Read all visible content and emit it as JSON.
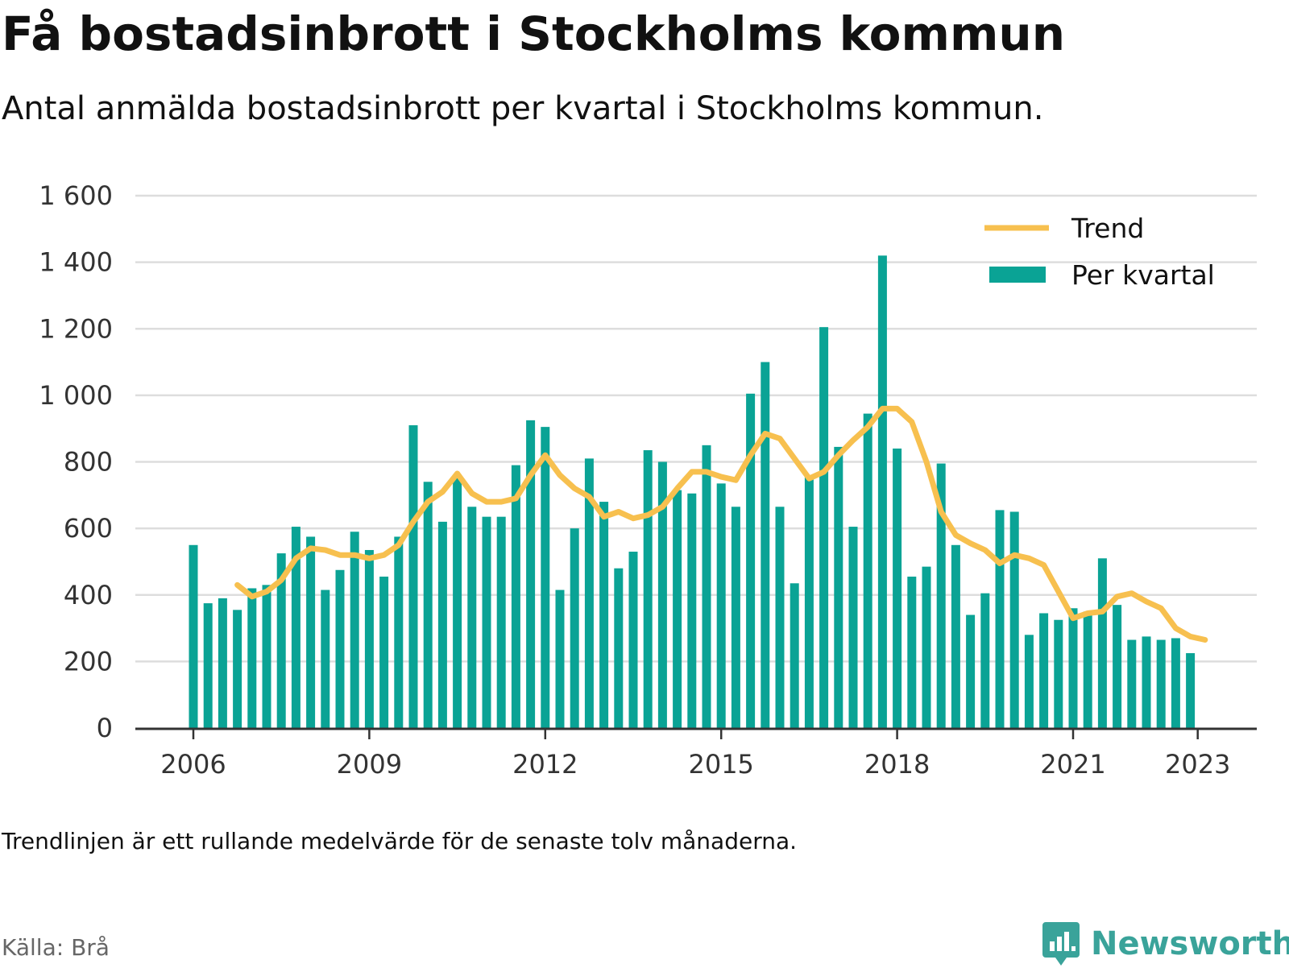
{
  "header": {
    "title": "Få bostadsinbrott i Stockholms kommun",
    "subtitle": "Antal anmälda bostadsinbrott per kvartal i Stockholms kommun."
  },
  "footer": {
    "note": "Trendlinjen är ett rullande medelvärde för de senaste tolv månaderna.",
    "source": "Källa: Brå",
    "brand": "Newsworthy"
  },
  "colors": {
    "bars": "#0aa395",
    "trend": "#f7c04f",
    "grid": "#dddddd",
    "axis": "#333333",
    "brand": "#3aa39a"
  },
  "chart_data": {
    "type": "bar",
    "x_start": "2006 Q1",
    "ylim": [
      0,
      1600
    ],
    "yticks": [
      0,
      200,
      400,
      600,
      800,
      1000,
      1200,
      1400,
      1600
    ],
    "ytick_labels": [
      "0",
      "200",
      "400",
      "600",
      "800",
      "1 000",
      "1 200",
      "1 400",
      "1 600"
    ],
    "xtick_labels": [
      "2006",
      "2009",
      "2012",
      "2015",
      "2018",
      "2021",
      "2023"
    ],
    "grid": true,
    "legend_position": "top-right",
    "series": [
      {
        "name": "Per kvartal",
        "type": "bar",
        "values": [
          550,
          375,
          390,
          355,
          420,
          430,
          525,
          605,
          575,
          415,
          475,
          590,
          535,
          455,
          575,
          910,
          740,
          620,
          755,
          665,
          635,
          635,
          790,
          925,
          905,
          415,
          600,
          810,
          680,
          480,
          530,
          835,
          800,
          715,
          705,
          850,
          735,
          665,
          1005,
          1100,
          665,
          435,
          755,
          1205,
          845,
          605,
          945,
          1420,
          840,
          455,
          485,
          795,
          550,
          340,
          405,
          655,
          650,
          280,
          345,
          325,
          360,
          350,
          510,
          370,
          265,
          275,
          265,
          270,
          225
        ]
      },
      {
        "name": "Trend",
        "type": "line",
        "start_index": 3,
        "values": [
          430,
          395,
          410,
          445,
          510,
          540,
          535,
          520,
          520,
          510,
          520,
          550,
          620,
          680,
          710,
          765,
          705,
          680,
          680,
          690,
          760,
          820,
          760,
          720,
          695,
          635,
          650,
          630,
          640,
          665,
          720,
          770,
          770,
          755,
          745,
          820,
          885,
          870,
          810,
          750,
          770,
          820,
          865,
          905,
          960,
          960,
          920,
          800,
          650,
          580,
          555,
          535,
          495,
          520,
          510,
          490,
          410,
          330,
          345,
          350,
          395,
          405,
          380,
          360,
          300,
          275,
          265
        ]
      }
    ]
  }
}
